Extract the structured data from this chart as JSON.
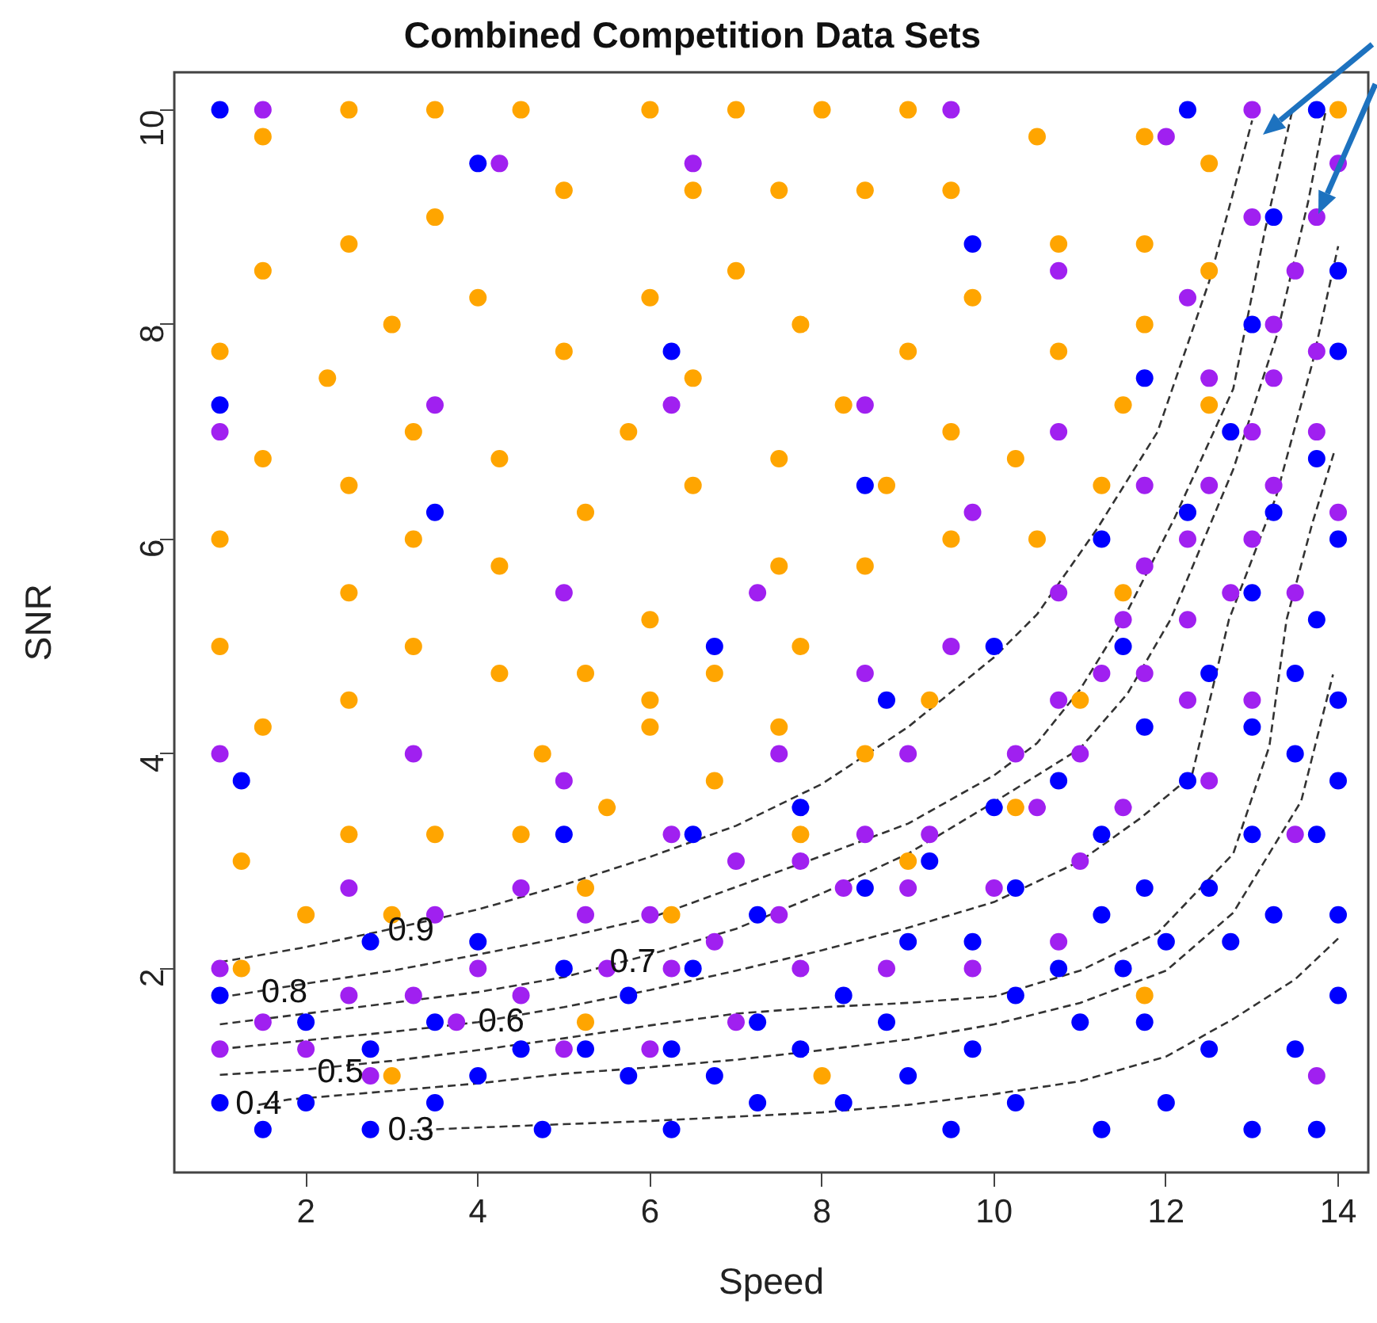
{
  "chart_data": {
    "type": "scatter",
    "title": "Combined Competition Data Sets",
    "xlabel": "Speed",
    "ylabel": "SNR",
    "xlim": [
      0.47,
      14.35
    ],
    "ylim": [
      0.1,
      10.35
    ],
    "xticks": [
      2,
      4,
      6,
      8,
      10,
      12,
      14
    ],
    "yticks": [
      2,
      4,
      6,
      8,
      10
    ],
    "grid": false,
    "marker": "circle",
    "series": [
      {
        "color": "#0000ff",
        "x": [
          1,
          12.25,
          13.75,
          4,
          13.25,
          9.75,
          14,
          13,
          6.25,
          14,
          11.75,
          1,
          12.75,
          13.75,
          8.5,
          3.5,
          12.25,
          13.25,
          11.25,
          14,
          13,
          13.75,
          6.75,
          10,
          11.5,
          12.5,
          13.5,
          8.75,
          14,
          11.75,
          13,
          13.5,
          1.25,
          10.75,
          12.25,
          14,
          7.75,
          10,
          5,
          6.5,
          11.25,
          13,
          13.75,
          9.25,
          8.5,
          10.25,
          11.75,
          12.5,
          7.25,
          11.25,
          13.25,
          14,
          2.75,
          4,
          9,
          9.75,
          12,
          12.75,
          5,
          6.5,
          10.75,
          11.5,
          1,
          5.75,
          8.25,
          10.25,
          14,
          2,
          3.5,
          7.25,
          8.75,
          11,
          11.75,
          2.75,
          4.5,
          5.25,
          6.25,
          7.75,
          9.75,
          12.5,
          13.5,
          4,
          5.75,
          6.75,
          9,
          1,
          2,
          3.5,
          7.25,
          8.25,
          10.25,
          12,
          1.5,
          2.75,
          4.75,
          6.25,
          9.5,
          11.25,
          13,
          13.75
        ],
        "values": [
          10,
          10,
          10,
          9.5,
          9,
          8.75,
          8.5,
          8,
          7.75,
          7.75,
          7.5,
          7.25,
          7,
          6.75,
          6.5,
          6.25,
          6.25,
          6.25,
          6,
          6,
          5.5,
          5.25,
          5,
          5,
          5,
          4.75,
          4.75,
          4.5,
          4.5,
          4.25,
          4.25,
          4,
          3.75,
          3.75,
          3.75,
          3.75,
          3.5,
          3.5,
          3.25,
          3.25,
          3.25,
          3.25,
          3.25,
          3,
          2.75,
          2.75,
          2.75,
          2.75,
          2.5,
          2.5,
          2.5,
          2.5,
          2.25,
          2.25,
          2.25,
          2.25,
          2.25,
          2.25,
          2,
          2,
          2,
          2,
          1.75,
          1.75,
          1.75,
          1.75,
          1.75,
          1.5,
          1.5,
          1.5,
          1.5,
          1.5,
          1.5,
          1.25,
          1.25,
          1.25,
          1.25,
          1.25,
          1.25,
          1.25,
          1.25,
          1,
          1,
          1,
          1,
          0.75,
          0.75,
          0.75,
          0.75,
          0.75,
          0.75,
          0.75,
          0.5,
          0.5,
          0.5,
          0.5,
          0.5,
          0.5,
          0.5,
          0.5
        ]
      },
      {
        "color": "#a020f0",
        "x": [
          1.5,
          9.5,
          13,
          12,
          4.25,
          6.5,
          14,
          13,
          13.75,
          10.75,
          13.5,
          12.25,
          13.25,
          13.75,
          12.5,
          13.25,
          3.5,
          6.25,
          8.5,
          1,
          10.75,
          13,
          13.75,
          11.75,
          12.5,
          13.25,
          9.75,
          14,
          12.25,
          13,
          11.75,
          5,
          7.25,
          10.75,
          12.75,
          13.5,
          11.5,
          12.25,
          9.5,
          8.5,
          11.25,
          11.75,
          10.75,
          12.25,
          13,
          1,
          3.25,
          7.5,
          9,
          10.25,
          11,
          5,
          12.5,
          10.5,
          11.5,
          6.25,
          8.5,
          9.25,
          13.5,
          7,
          7.75,
          11,
          2.5,
          4.5,
          8.25,
          9,
          10,
          3.5,
          5.25,
          6,
          7.5,
          6.75,
          10.75,
          1,
          4,
          5.5,
          6.25,
          7.75,
          8.75,
          9.75,
          2.5,
          3.25,
          4.5,
          1.5,
          3.75,
          7,
          1,
          2,
          5,
          6,
          2.75,
          13.75
        ],
        "values": [
          10,
          10,
          10,
          9.75,
          9.5,
          9.5,
          9.5,
          9,
          9,
          8.5,
          8.5,
          8.25,
          8,
          7.75,
          7.5,
          7.5,
          7.25,
          7.25,
          7.25,
          7,
          7,
          7,
          7,
          6.5,
          6.5,
          6.5,
          6.25,
          6.25,
          6,
          6,
          5.75,
          5.5,
          5.5,
          5.5,
          5.5,
          5.5,
          5.25,
          5.25,
          5,
          4.75,
          4.75,
          4.75,
          4.5,
          4.5,
          4.5,
          4,
          4,
          4,
          4,
          4,
          4,
          3.75,
          3.75,
          3.5,
          3.5,
          3.25,
          3.25,
          3.25,
          3.25,
          3,
          3,
          3,
          2.75,
          2.75,
          2.75,
          2.75,
          2.75,
          2.5,
          2.5,
          2.5,
          2.5,
          2.25,
          2.25,
          2,
          2,
          2,
          2,
          2,
          2,
          2,
          1.75,
          1.75,
          1.75,
          1.5,
          1.5,
          1.5,
          1.25,
          1.25,
          1.25,
          1.25,
          1,
          1
        ]
      },
      {
        "color": "#ffa500",
        "x": [
          2.5,
          3.5,
          4.5,
          6,
          7,
          8,
          9,
          14,
          1.5,
          10.5,
          11.75,
          12.5,
          5,
          6.5,
          7.5,
          8.5,
          9.5,
          3.5,
          2.5,
          10.75,
          11.75,
          1.5,
          7,
          12.5,
          4,
          6,
          9.75,
          3,
          7.75,
          11.75,
          1,
          5,
          9,
          10.75,
          2.25,
          6.5,
          8.25,
          11.5,
          12.5,
          3.25,
          5.75,
          9.5,
          1.5,
          4.25,
          7.5,
          10.25,
          2.5,
          6.5,
          8.75,
          11.25,
          5.25,
          1,
          3.25,
          9.5,
          10.5,
          4.25,
          7.5,
          8.5,
          2.5,
          11.5,
          6,
          1,
          3.25,
          7.75,
          4.25,
          5.25,
          6.75,
          2.5,
          6,
          9.25,
          11,
          1.5,
          6,
          7.5,
          4.75,
          8.5,
          6.75,
          5.5,
          10.25,
          2.5,
          3.5,
          4.5,
          7.75,
          1.25,
          9,
          5.25,
          2,
          3,
          6.25,
          1.25,
          11.75,
          5.25,
          3,
          8
        ],
        "values": [
          10,
          10,
          10,
          10,
          10,
          10,
          10,
          10,
          9.75,
          9.75,
          9.75,
          9.5,
          9.25,
          9.25,
          9.25,
          9.25,
          9.25,
          9,
          8.75,
          8.75,
          8.75,
          8.5,
          8.5,
          8.5,
          8.25,
          8.25,
          8.25,
          8,
          8,
          8,
          7.75,
          7.75,
          7.75,
          7.75,
          7.5,
          7.5,
          7.25,
          7.25,
          7.25,
          7,
          7,
          7,
          6.75,
          6.75,
          6.75,
          6.75,
          6.5,
          6.5,
          6.5,
          6.5,
          6.25,
          6,
          6,
          6,
          6,
          5.75,
          5.75,
          5.75,
          5.5,
          5.5,
          5.25,
          5,
          5,
          5,
          4.75,
          4.75,
          4.75,
          4.5,
          4.5,
          4.5,
          4.5,
          4.25,
          4.25,
          4.25,
          4,
          4,
          3.75,
          3.5,
          3.5,
          3.25,
          3.25,
          3.25,
          3.25,
          3,
          3,
          2.75,
          2.5,
          2.5,
          2.5,
          2,
          1.75,
          1.5,
          1,
          1
        ]
      },
      {
        "type": "line",
        "color": "#333333",
        "line_style": "dashed",
        "marker": "none",
        "x": [
          1,
          2,
          3,
          4,
          5,
          6,
          7,
          8,
          9,
          10,
          10.5,
          11.2,
          11.9,
          12.5,
          12.75,
          13
        ],
        "values": [
          2.06,
          2.2,
          2.37,
          2.55,
          2.78,
          3.04,
          3.33,
          3.72,
          4.25,
          4.9,
          5.3,
          6.1,
          7,
          8.4,
          9.14,
          9.9
        ]
      },
      {
        "type": "line",
        "color": "#333333",
        "line_style": "dashed",
        "marker": "none",
        "x": [
          1,
          2,
          3,
          4,
          5,
          6,
          7,
          8,
          9,
          10,
          10.5,
          11,
          11.5,
          12.1,
          12.78,
          13.15,
          13.46
        ],
        "values": [
          1.73,
          1.86,
          1.98,
          2.13,
          2.29,
          2.47,
          2.76,
          3.05,
          3.35,
          3.8,
          4.1,
          4.6,
          5.25,
          6.2,
          7.4,
          8.88,
          9.97
        ]
      },
      {
        "type": "line",
        "color": "#333333",
        "line_style": "dashed",
        "marker": "none",
        "x": [
          1,
          2,
          3,
          4,
          5,
          6,
          7,
          8,
          9,
          10,
          11,
          11.55,
          12.05,
          12.78,
          13.28,
          13.65,
          13.85
        ],
        "values": [
          1.48,
          1.58,
          1.68,
          1.78,
          1.92,
          2.13,
          2.37,
          2.7,
          3.07,
          3.55,
          4.05,
          4.56,
          5.25,
          6.65,
          7.88,
          9.14,
          9.97
        ]
      },
      {
        "type": "line",
        "color": "#333333",
        "line_style": "dashed",
        "marker": "none",
        "x": [
          1,
          2,
          3,
          4,
          5,
          6,
          7,
          8,
          9,
          10,
          11,
          11.7,
          12.3,
          12.73,
          13.28,
          13.7,
          14
        ],
        "values": [
          1.25,
          1.33,
          1.41,
          1.5,
          1.64,
          1.8,
          1.98,
          2.17,
          2.38,
          2.62,
          3,
          3.4,
          3.8,
          5.25,
          6.4,
          7.64,
          8.73
        ]
      },
      {
        "type": "line",
        "color": "#333333",
        "line_style": "dashed",
        "marker": "none",
        "x": [
          1,
          2,
          3,
          4,
          5,
          6,
          7,
          8,
          9,
          10,
          11,
          11.9,
          12.78,
          13.2,
          13.4,
          13.7,
          13.96
        ],
        "values": [
          1.01,
          1.06,
          1.14,
          1.24,
          1.35,
          1.47,
          1.58,
          1.64,
          1.68,
          1.74,
          1.98,
          2.33,
          3.07,
          4.07,
          5.25,
          6.15,
          6.83
        ]
      },
      {
        "type": "line",
        "color": "#333333",
        "line_style": "dashed",
        "marker": "none",
        "x": [
          1.45,
          1.8,
          3,
          4,
          5,
          6,
          7,
          8,
          9,
          10,
          11,
          12,
          12.78,
          13.57,
          13.94
        ],
        "values": [
          0.73,
          0.78,
          0.86,
          0.93,
          1.02,
          1.08,
          1.15,
          1.24,
          1.34,
          1.48,
          1.68,
          1.98,
          2.52,
          3.56,
          4.74
        ]
      },
      {
        "type": "line",
        "color": "#333333",
        "line_style": "dashed",
        "marker": "none",
        "x": [
          3.22,
          3.72,
          5,
          6,
          7,
          8,
          9,
          10,
          11,
          12,
          12.78,
          13.5,
          14
        ],
        "values": [
          0.49,
          0.51,
          0.55,
          0.58,
          0.62,
          0.66,
          0.73,
          0.83,
          0.95,
          1.18,
          1.53,
          1.9,
          2.28
        ]
      }
    ],
    "annotations": [
      {
        "text": "0.9",
        "x": 3.22,
        "y": 2.35
      },
      {
        "text": "0.8",
        "x": 1.75,
        "y": 1.77
      },
      {
        "text": "0.7",
        "x": 5.8,
        "y": 2.05
      },
      {
        "text": "0.6",
        "x": 4.27,
        "y": 1.5
      },
      {
        "text": "0.5",
        "x": 2.4,
        "y": 1.03
      },
      {
        "text": "0.4",
        "x": 1.45,
        "y": 0.73
      },
      {
        "text": "0.3",
        "x": 3.22,
        "y": 0.49
      }
    ]
  }
}
